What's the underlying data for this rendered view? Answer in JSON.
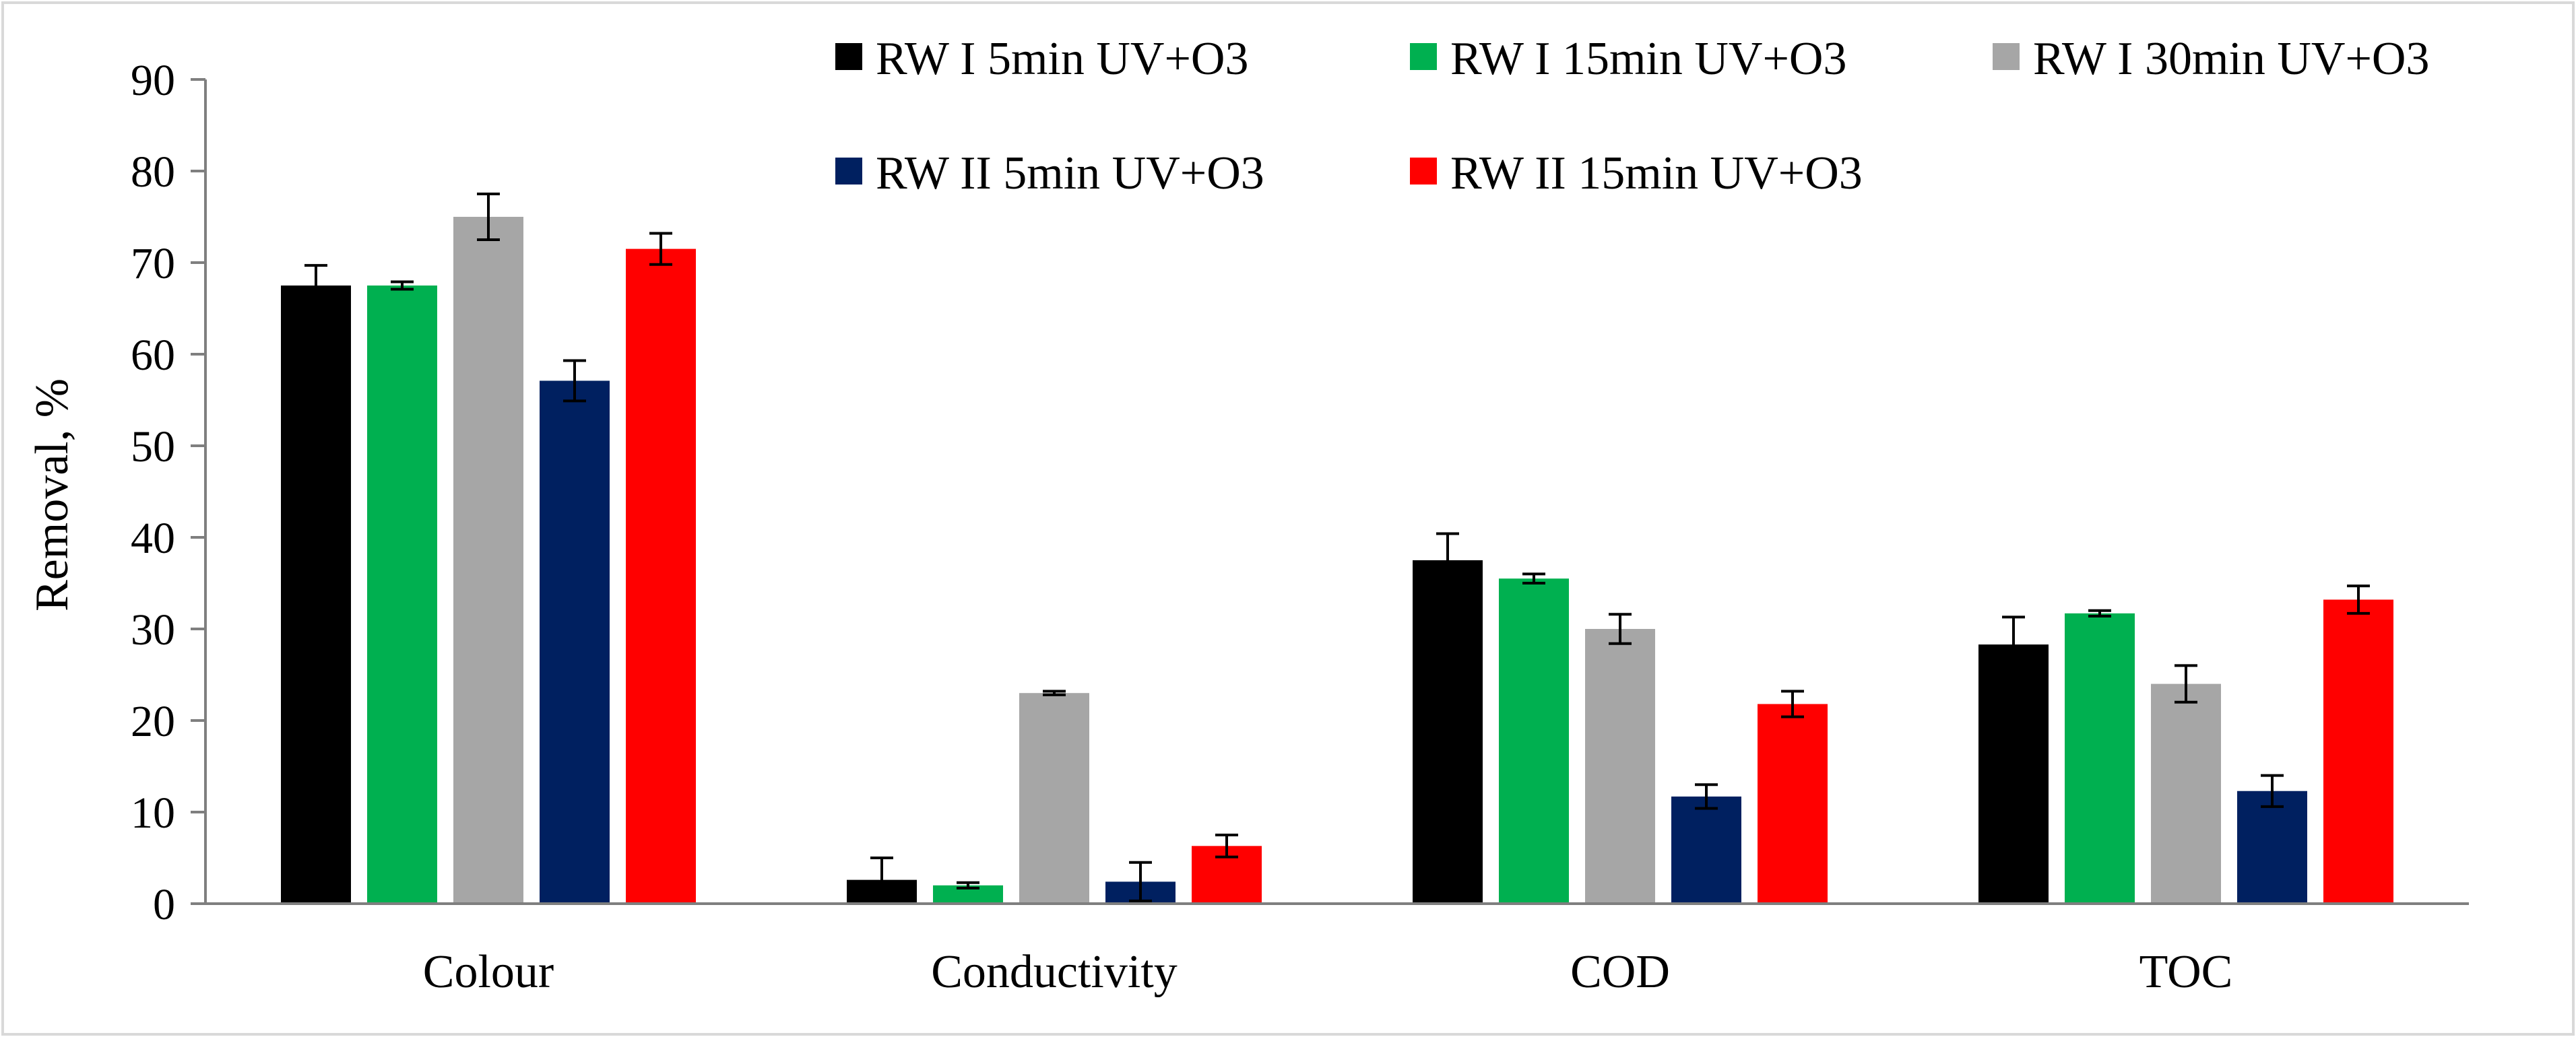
{
  "chart_data": {
    "type": "bar",
    "title": "",
    "xlabel": "",
    "ylabel": "Removal, %",
    "ylim": [
      0,
      90
    ],
    "yticks": [
      0,
      10,
      20,
      30,
      40,
      50,
      60,
      70,
      80,
      90
    ],
    "grid": false,
    "legend_position": "top-right",
    "categories": [
      "Colour",
      "Conductivity",
      "COD",
      "TOC"
    ],
    "series": [
      {
        "name": "RW I 5min UV+O3",
        "color": "#000000",
        "values": [
          67.5,
          2.6,
          37.5,
          28.3
        ],
        "errors": [
          2.2,
          2.4,
          2.9,
          3.0
        ]
      },
      {
        "name": "RW I 15min UV+O3",
        "color": "#00b050",
        "values": [
          67.5,
          2.0,
          35.5,
          31.7
        ],
        "errors": [
          0.4,
          0.3,
          0.5,
          0.3
        ]
      },
      {
        "name": "RW I 30min UV+O3",
        "color": "#a6a6a6",
        "values": [
          75.0,
          23.0,
          30.0,
          24.0
        ],
        "errors": [
          2.5,
          0.2,
          1.6,
          2.0
        ]
      },
      {
        "name": "RW II 5min UV+O3",
        "color": "#002060",
        "values": [
          57.1,
          2.4,
          11.7,
          12.3
        ],
        "errors": [
          2.2,
          2.1,
          1.3,
          1.7
        ]
      },
      {
        "name": "RW II 15min UV+O3",
        "color": "#ff0000",
        "values": [
          71.5,
          6.3,
          21.8,
          33.2
        ],
        "errors": [
          1.7,
          1.2,
          1.4,
          1.5
        ]
      }
    ]
  }
}
